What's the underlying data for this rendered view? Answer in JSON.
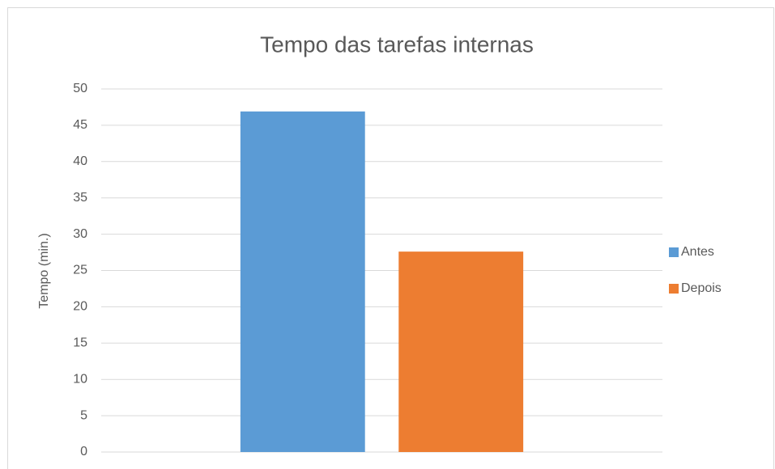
{
  "chart_data": {
    "type": "bar",
    "title": "Tempo das tarefas internas",
    "y_label": "Tempo (min.)",
    "categories": [
      null
    ],
    "series": [
      {
        "name": "Antes",
        "color": "#5b9bd5",
        "values": [
          46.9
        ]
      },
      {
        "name": "Depois",
        "color": "#ed7d31",
        "values": [
          27.6
        ]
      }
    ],
    "ylim": [
      0,
      50
    ],
    "yticks": [
      0,
      5,
      10,
      15,
      20,
      25,
      30,
      35,
      40,
      45,
      50
    ],
    "grid": true,
    "legend": "right"
  }
}
